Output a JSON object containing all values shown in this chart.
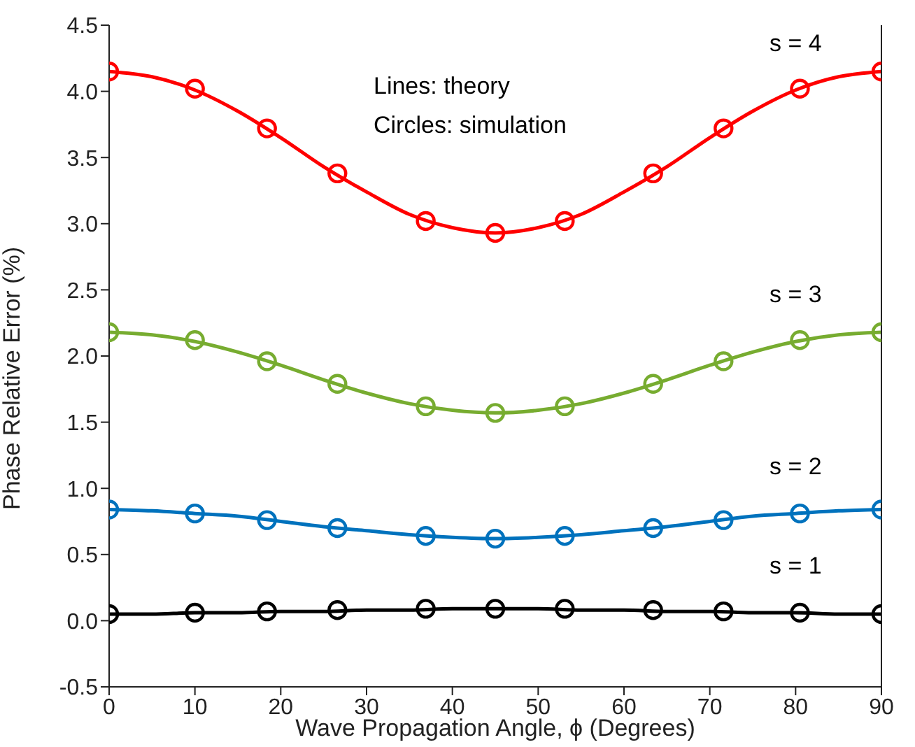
{
  "chart_data": {
    "type": "line",
    "xlabel": "Wave Propagation Angle, ϕ (Degrees)",
    "ylabel": "Phase Relative Error (%)",
    "annotations": [
      "Lines: theory",
      "Circles: simulation"
    ],
    "xlim": [
      0,
      90
    ],
    "xticks": [
      0,
      10,
      20,
      30,
      40,
      50,
      60,
      70,
      80,
      90
    ],
    "ylim": [
      -0.5,
      4.5
    ],
    "yticks": [
      -0.5,
      {
        "value": 0,
        "label": "0.0"
      },
      0.5,
      {
        "value": 1,
        "label": "1.0"
      },
      1.5,
      {
        "value": 2,
        "label": "2.0"
      },
      2.5,
      {
        "value": 3,
        "label": "3.0"
      },
      3.5,
      {
        "value": 4,
        "label": "4.0"
      },
      4.5
    ],
    "grid": false,
    "legend": false,
    "series": [
      {
        "name": "s = 4",
        "marker": "none",
        "color": "#ff0000",
        "x": [
          0,
          5,
          10,
          15,
          20,
          25,
          30,
          35,
          40,
          45,
          50,
          55,
          60,
          65,
          70,
          75,
          80,
          85,
          90
        ],
        "values": [
          4.15,
          4.11,
          4.01,
          3.85,
          3.65,
          3.43,
          3.24,
          3.07,
          2.97,
          2.93,
          2.97,
          3.07,
          3.24,
          3.43,
          3.65,
          3.85,
          4.01,
          4.11,
          4.15
        ]
      },
      {
        "type": "scatter",
        "marker": "circle",
        "color": "#ff0000",
        "x": [
          0,
          10,
          18.4,
          26.6,
          36.9,
          45,
          53.1,
          63.4,
          71.6,
          80.5,
          90
        ],
        "values": [
          4.15,
          4.02,
          3.72,
          3.38,
          3.02,
          2.93,
          3.02,
          3.38,
          3.72,
          4.02,
          4.15
        ]
      },
      {
        "name": "s = 3",
        "marker": "none",
        "color": "#77ac30",
        "x": [
          0,
          5,
          10,
          15,
          20,
          25,
          30,
          35,
          40,
          45,
          50,
          55,
          60,
          65,
          70,
          75,
          80,
          85,
          90
        ],
        "values": [
          2.18,
          2.16,
          2.11,
          2.03,
          1.93,
          1.82,
          1.72,
          1.64,
          1.59,
          1.57,
          1.59,
          1.64,
          1.72,
          1.82,
          1.93,
          2.03,
          2.11,
          2.16,
          2.18
        ]
      },
      {
        "type": "scatter",
        "marker": "circle",
        "color": "#77ac30",
        "x": [
          0,
          10,
          18.4,
          26.6,
          36.9,
          45,
          53.1,
          63.4,
          71.6,
          80.5,
          90
        ],
        "values": [
          2.18,
          2.12,
          1.96,
          1.79,
          1.62,
          1.57,
          1.62,
          1.79,
          1.96,
          2.12,
          2.18
        ]
      },
      {
        "name": "s = 2",
        "marker": "none",
        "color": "#0072bd",
        "x": [
          0,
          5,
          10,
          15,
          20,
          25,
          30,
          35,
          40,
          45,
          50,
          55,
          60,
          65,
          70,
          75,
          80,
          85,
          90
        ],
        "values": [
          0.84,
          0.83,
          0.81,
          0.79,
          0.75,
          0.71,
          0.68,
          0.65,
          0.63,
          0.62,
          0.63,
          0.65,
          0.68,
          0.71,
          0.75,
          0.79,
          0.81,
          0.83,
          0.84
        ]
      },
      {
        "type": "scatter",
        "marker": "circle",
        "color": "#0072bd",
        "x": [
          0,
          10,
          18.4,
          26.6,
          36.9,
          45,
          53.1,
          63.4,
          71.6,
          80.5,
          90
        ],
        "values": [
          0.84,
          0.81,
          0.76,
          0.7,
          0.64,
          0.62,
          0.64,
          0.7,
          0.76,
          0.81,
          0.84
        ]
      },
      {
        "name": "s = 1",
        "marker": "none",
        "color": "#000000",
        "x": [
          0,
          5,
          10,
          15,
          20,
          25,
          30,
          35,
          40,
          45,
          50,
          55,
          60,
          65,
          70,
          75,
          80,
          85,
          90
        ],
        "values": [
          0.05,
          0.05,
          0.06,
          0.06,
          0.07,
          0.07,
          0.08,
          0.08,
          0.09,
          0.09,
          0.09,
          0.08,
          0.08,
          0.07,
          0.07,
          0.06,
          0.06,
          0.05,
          0.05
        ]
      },
      {
        "type": "scatter",
        "marker": "circle",
        "color": "#000000",
        "x": [
          0,
          10,
          18.4,
          26.6,
          36.9,
          45,
          53.1,
          63.4,
          71.6,
          80.5,
          90
        ],
        "values": [
          0.05,
          0.06,
          0.07,
          0.08,
          0.09,
          0.09,
          0.09,
          0.08,
          0.07,
          0.06,
          0.05
        ]
      }
    ]
  }
}
